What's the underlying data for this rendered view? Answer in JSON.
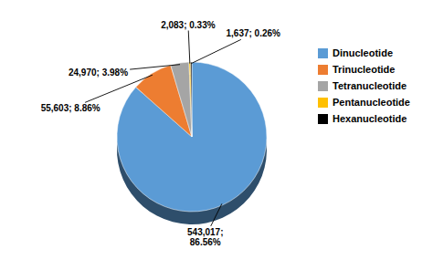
{
  "chart_data": {
    "type": "pie",
    "categories": [
      "Dinucleotide",
      "Trinucleotide",
      "Tetranucleotide",
      "Pentanucleotide",
      "Hexanucleotide"
    ],
    "values": [
      543017,
      55603,
      24970,
      2083,
      1637
    ],
    "value_labels": [
      "543,017;\n86.56%",
      "55,603; 8.86%",
      "24,970; 3.98%",
      "2,083; 0.33%",
      "1,637; 0.26%"
    ],
    "colors": [
      "#5b9bd5",
      "#ed7d31",
      "#a5a5a5",
      "#ffc000",
      "#000000"
    ],
    "data_labels": true,
    "legend": "right"
  }
}
